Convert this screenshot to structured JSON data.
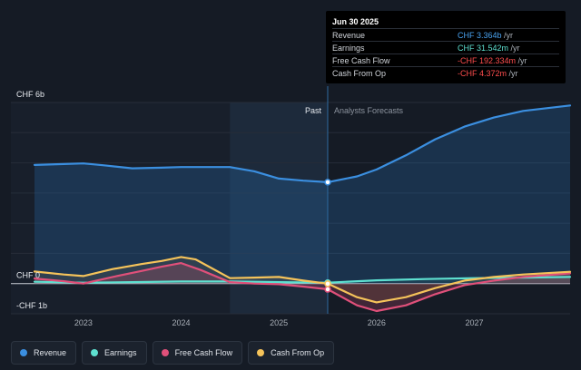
{
  "tooltip": {
    "date": "Jun 30 2025",
    "rows": [
      {
        "label": "Revenue",
        "value": "CHF 3.364b",
        "unit": " /yr",
        "color": "#4aa3f0"
      },
      {
        "label": "Earnings",
        "value": "CHF 31.542m",
        "unit": " /yr",
        "color": "#5ee0d0"
      },
      {
        "label": "Free Cash Flow",
        "value": "-CHF 192.334m",
        "unit": " /yr",
        "color": "#ff4d4d"
      },
      {
        "label": "Cash From Op",
        "value": "-CHF 4.372m",
        "unit": " /yr",
        "color": "#ff4d4d"
      }
    ]
  },
  "legend": [
    {
      "label": "Revenue",
      "color": "#3b8fe0"
    },
    {
      "label": "Earnings",
      "color": "#5ee0d0"
    },
    {
      "label": "Free Cash Flow",
      "color": "#e0507a"
    },
    {
      "label": "Cash From Op",
      "color": "#f5c35a"
    }
  ],
  "chart_data": {
    "type": "line",
    "y_labels": {
      "top": "CHF 6b",
      "zero": "CHF 0",
      "bottom": "-CHF 1b"
    },
    "ylim": [
      -1,
      6
    ],
    "xlim": [
      2022.5,
      2027.98
    ],
    "x_ticks": [
      {
        "label": "2023",
        "value": 2023
      },
      {
        "label": "2024",
        "value": 2024
      },
      {
        "label": "2025",
        "value": 2025
      },
      {
        "label": "2026",
        "value": 2026
      },
      {
        "label": "2027",
        "value": 2027
      }
    ],
    "divider": 2025.5,
    "past_label": "Past",
    "forecast_label": "Analysts Forecasts",
    "highlight_start": 2024.5,
    "series": [
      {
        "name": "Revenue",
        "color": "#3b8fe0",
        "x": [
          2022.5,
          2022.8,
          2023.0,
          2023.2,
          2023.5,
          2023.8,
          2024.0,
          2024.3,
          2024.5,
          2024.75,
          2025.0,
          2025.25,
          2025.5,
          2025.8,
          2026.0,
          2026.3,
          2026.6,
          2026.9,
          2027.2,
          2027.5,
          2027.98
        ],
        "y": [
          3.93,
          3.96,
          3.98,
          3.92,
          3.82,
          3.84,
          3.86,
          3.86,
          3.86,
          3.72,
          3.48,
          3.41,
          3.36,
          3.55,
          3.78,
          4.25,
          4.78,
          5.2,
          5.5,
          5.72,
          5.9
        ]
      },
      {
        "name": "Earnings",
        "color": "#5ee0d0",
        "x": [
          2022.5,
          2023.0,
          2023.5,
          2024.0,
          2024.5,
          2025.0,
          2025.5,
          2026.0,
          2026.5,
          2027.0,
          2027.5,
          2027.98
        ],
        "y": [
          0.06,
          0.03,
          0.05,
          0.07,
          0.07,
          0.05,
          0.03,
          0.11,
          0.15,
          0.18,
          0.2,
          0.22
        ]
      },
      {
        "name": "Free Cash Flow",
        "color": "#e0507a",
        "x": [
          2022.5,
          2022.8,
          2023.0,
          2023.3,
          2023.6,
          2023.8,
          2024.0,
          2024.2,
          2024.5,
          2024.75,
          2025.0,
          2025.25,
          2025.5,
          2025.8,
          2026.0,
          2026.3,
          2026.6,
          2026.9,
          2027.2,
          2027.5,
          2027.98
        ],
        "y": [
          0.17,
          0.08,
          0.0,
          0.22,
          0.42,
          0.56,
          0.68,
          0.45,
          0.05,
          0.0,
          -0.02,
          -0.1,
          -0.19,
          -0.72,
          -0.91,
          -0.72,
          -0.35,
          -0.05,
          0.1,
          0.22,
          0.34
        ]
      },
      {
        "name": "Cash From Op",
        "color": "#f5c35a",
        "x": [
          2022.5,
          2022.8,
          2023.0,
          2023.3,
          2023.6,
          2023.8,
          2024.0,
          2024.15,
          2024.5,
          2024.75,
          2025.0,
          2025.25,
          2025.5,
          2025.8,
          2026.0,
          2026.3,
          2026.6,
          2026.9,
          2027.2,
          2027.5,
          2027.98
        ],
        "y": [
          0.4,
          0.3,
          0.25,
          0.48,
          0.65,
          0.75,
          0.88,
          0.8,
          0.18,
          0.2,
          0.22,
          0.1,
          -0.004,
          -0.45,
          -0.62,
          -0.45,
          -0.15,
          0.1,
          0.22,
          0.3,
          0.39
        ]
      }
    ]
  }
}
